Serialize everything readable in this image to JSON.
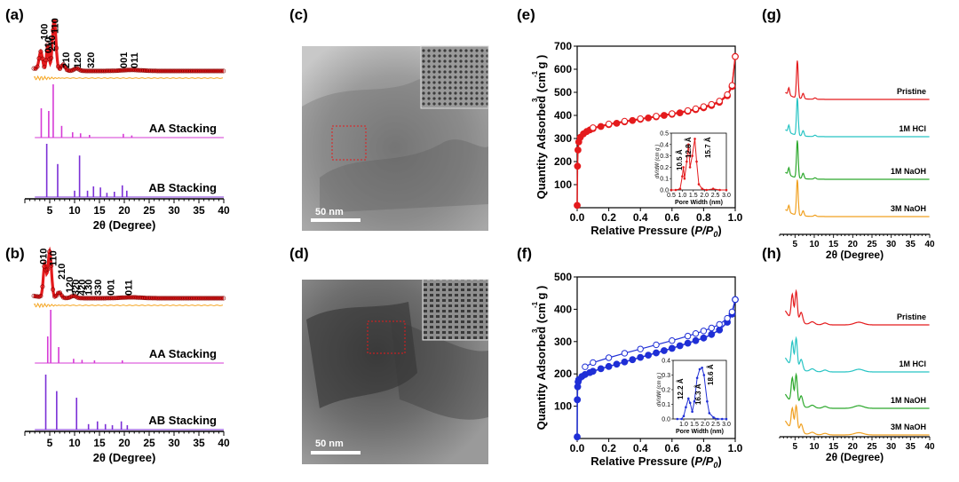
{
  "panels": {
    "a": "(a)",
    "b": "(b)",
    "c": "(c)",
    "d": "(d)",
    "e": "(e)",
    "f": "(f)",
    "g": "(g)",
    "h": "(h)"
  },
  "colors": {
    "experimental": "#e41a1c",
    "fit_marker": "#8b0000",
    "difference": "#f5a623",
    "aa": "#d63ad6",
    "ab": "#7b2fd6",
    "iso_e": "#e41a1c",
    "iso_f": "#1f2fd6",
    "pristine": "#e41a1c",
    "hcl": "#27c4c4",
    "naoh1": "#2ca82c",
    "naoh3": "#f0a020"
  },
  "chart_data": [
    {
      "id": "a",
      "type": "line",
      "xlabel": "2θ (Degree)",
      "xlim": [
        0,
        40
      ],
      "xticks": [
        5,
        10,
        15,
        20,
        25,
        30,
        35,
        40
      ],
      "peak_labels": [
        {
          "text": "100",
          "x": 3.8
        },
        {
          "text": "010",
          "x": 4.6
        },
        {
          "text": "210",
          "x": 5.4
        },
        {
          "text": "110",
          "x": 6.0
        },
        {
          "text": "210",
          "x": 8.2
        },
        {
          "text": "120",
          "x": 10.5
        },
        {
          "text": "320",
          "x": 13.2
        },
        {
          "text": "001",
          "x": 19.8
        },
        {
          "text": "011",
          "x": 22.0
        }
      ],
      "stack_labels": [
        "AA Stacking",
        "AB Stacking"
      ],
      "aa_sticks": [
        {
          "x": 3.3,
          "h": 0.55
        },
        {
          "x": 4.8,
          "h": 0.5
        },
        {
          "x": 5.7,
          "h": 1.0
        },
        {
          "x": 7.4,
          "h": 0.22
        },
        {
          "x": 9.6,
          "h": 0.1
        },
        {
          "x": 11.2,
          "h": 0.08
        },
        {
          "x": 13.0,
          "h": 0.05
        },
        {
          "x": 19.8,
          "h": 0.07
        },
        {
          "x": 21.5,
          "h": 0.04
        }
      ],
      "ab_sticks": [
        {
          "x": 4.4,
          "h": 1.0
        },
        {
          "x": 6.6,
          "h": 0.62
        },
        {
          "x": 10.0,
          "h": 0.12
        },
        {
          "x": 11.0,
          "h": 0.78
        },
        {
          "x": 12.6,
          "h": 0.12
        },
        {
          "x": 13.8,
          "h": 0.2
        },
        {
          "x": 15.2,
          "h": 0.18
        },
        {
          "x": 16.5,
          "h": 0.08
        },
        {
          "x": 18.0,
          "h": 0.1
        },
        {
          "x": 19.6,
          "h": 0.22
        },
        {
          "x": 20.5,
          "h": 0.12
        }
      ]
    },
    {
      "id": "b",
      "type": "line",
      "xlabel": "2θ (Degree)",
      "xlim": [
        0,
        40
      ],
      "xticks": [
        5,
        10,
        15,
        20,
        25,
        30,
        35,
        40
      ],
      "peak_labels": [
        {
          "text": "010",
          "x": 3.7
        },
        {
          "text": "110",
          "x": 5.6
        },
        {
          "text": "210",
          "x": 7.3
        },
        {
          "text": "120",
          "x": 8.9
        },
        {
          "text": "320",
          "x": 10.2
        },
        {
          "text": "420",
          "x": 11.4
        },
        {
          "text": "130",
          "x": 12.8
        },
        {
          "text": "330",
          "x": 14.6
        },
        {
          "text": "001",
          "x": 17.2
        },
        {
          "text": "011",
          "x": 20.8
        }
      ],
      "stack_labels": [
        "AA Stacking",
        "AB Stacking"
      ],
      "aa_sticks": [
        {
          "x": 4.6,
          "h": 0.5
        },
        {
          "x": 5.2,
          "h": 1.0
        },
        {
          "x": 6.8,
          "h": 0.3
        },
        {
          "x": 9.8,
          "h": 0.08
        },
        {
          "x": 11.5,
          "h": 0.06
        },
        {
          "x": 14.0,
          "h": 0.05
        },
        {
          "x": 19.6,
          "h": 0.05
        }
      ],
      "ab_sticks": [
        {
          "x": 4.2,
          "h": 1.0
        },
        {
          "x": 6.4,
          "h": 0.7
        },
        {
          "x": 10.4,
          "h": 0.58
        },
        {
          "x": 12.8,
          "h": 0.1
        },
        {
          "x": 14.6,
          "h": 0.15
        },
        {
          "x": 16.2,
          "h": 0.1
        },
        {
          "x": 17.6,
          "h": 0.08
        },
        {
          "x": 19.4,
          "h": 0.15
        },
        {
          "x": 20.6,
          "h": 0.08
        }
      ]
    },
    {
      "id": "e",
      "type": "scatter",
      "xlabel_pre": "Relative Pressure (",
      "xlabel_var": "P/P",
      "xlabel_sub": "0",
      "xlabel_post": ")",
      "ylabel": "Quantity Adsorbed (cm  g )",
      "ylabel_sup1": "3",
      "ylabel_sup2": "-1",
      "xlim": [
        0,
        1.0
      ],
      "ylim": [
        0,
        700
      ],
      "xticks": [
        0.0,
        0.2,
        0.4,
        0.6,
        0.8,
        1.0
      ],
      "xtick_labels": [
        "0.0",
        "0.2",
        "0.4",
        "0.6",
        "0.8",
        "1.0"
      ],
      "yticks": [
        100,
        200,
        300,
        400,
        500,
        600,
        700
      ],
      "adsorption": [
        [
          0.0,
          10
        ],
        [
          0.002,
          180
        ],
        [
          0.005,
          250
        ],
        [
          0.01,
          285
        ],
        [
          0.02,
          305
        ],
        [
          0.04,
          320
        ],
        [
          0.06,
          330
        ],
        [
          0.08,
          337
        ],
        [
          0.1,
          343
        ],
        [
          0.15,
          352
        ],
        [
          0.2,
          360
        ],
        [
          0.25,
          366
        ],
        [
          0.3,
          372
        ],
        [
          0.35,
          378
        ],
        [
          0.4,
          383
        ],
        [
          0.45,
          389
        ],
        [
          0.5,
          394
        ],
        [
          0.55,
          400
        ],
        [
          0.6,
          405
        ],
        [
          0.65,
          411
        ],
        [
          0.7,
          418
        ],
        [
          0.75,
          425
        ],
        [
          0.8,
          433
        ],
        [
          0.85,
          443
        ],
        [
          0.9,
          457
        ],
        [
          0.95,
          485
        ],
        [
          0.98,
          525
        ],
        [
          1.0,
          655
        ]
      ],
      "desorption": [
        [
          1.0,
          655
        ],
        [
          0.98,
          530
        ],
        [
          0.95,
          490
        ],
        [
          0.9,
          462
        ],
        [
          0.85,
          448
        ],
        [
          0.8,
          438
        ],
        [
          0.75,
          429
        ],
        [
          0.7,
          421
        ],
        [
          0.6,
          408
        ],
        [
          0.5,
          397
        ],
        [
          0.4,
          386
        ],
        [
          0.3,
          375
        ],
        [
          0.2,
          363
        ],
        [
          0.1,
          347
        ]
      ],
      "inset": {
        "xlabel": "Pore Width (nm)",
        "ylabel": "dV/dW (cm  g )",
        "ylabel_sup1": "3",
        "ylabel_sup2": "-1",
        "xlim": [
          0.5,
          3.0
        ],
        "ylim": [
          0,
          0.5
        ],
        "xticks": [
          0.5,
          1.0,
          1.5,
          2.0,
          2.5,
          3.0
        ],
        "xtick_labels": [
          "0.5",
          "1.0",
          "1.5",
          "2.0",
          "2.5",
          "3.0"
        ],
        "yticks": [
          0.0,
          0.1,
          0.2,
          0.3,
          0.4,
          0.5
        ],
        "ytick_labels": [
          "0.0",
          "0.1",
          "0.2",
          "0.3",
          "0.4",
          "0.5"
        ],
        "annotations": [
          "10.5 Å",
          "12.8 Å",
          "15.7 Å"
        ],
        "points": [
          [
            0.5,
            0.0
          ],
          [
            0.7,
            0.0
          ],
          [
            0.9,
            0.01
          ],
          [
            1.0,
            0.12
          ],
          [
            1.05,
            0.2
          ],
          [
            1.1,
            0.1
          ],
          [
            1.2,
            0.25
          ],
          [
            1.28,
            0.4
          ],
          [
            1.35,
            0.2
          ],
          [
            1.45,
            0.3
          ],
          [
            1.57,
            0.45
          ],
          [
            1.65,
            0.25
          ],
          [
            1.75,
            0.05
          ],
          [
            1.9,
            0.01
          ],
          [
            2.1,
            0.0
          ],
          [
            2.4,
            0.01
          ],
          [
            2.7,
            0.0
          ],
          [
            3.0,
            0.0
          ]
        ]
      }
    },
    {
      "id": "f",
      "type": "scatter",
      "xlabel_pre": "Relative Pressure (",
      "xlabel_var": "P/P",
      "xlabel_sub": "0",
      "xlabel_post": ")",
      "ylabel": "Quantity Adsorbed (cm  g )",
      "ylabel_sup1": "3",
      "ylabel_sup2": "-1",
      "xlim": [
        0,
        1.0
      ],
      "ylim": [
        0,
        500
      ],
      "xticks": [
        0.0,
        0.2,
        0.4,
        0.6,
        0.8,
        1.0
      ],
      "xtick_labels": [
        "0.0",
        "0.2",
        "0.4",
        "0.6",
        "0.8",
        "1.0"
      ],
      "yticks": [
        100,
        200,
        300,
        400,
        500
      ],
      "adsorption": [
        [
          0.0,
          5
        ],
        [
          0.001,
          120
        ],
        [
          0.003,
          160
        ],
        [
          0.006,
          175
        ],
        [
          0.01,
          182
        ],
        [
          0.03,
          192
        ],
        [
          0.05,
          198
        ],
        [
          0.08,
          204
        ],
        [
          0.1,
          208
        ],
        [
          0.15,
          216
        ],
        [
          0.2,
          223
        ],
        [
          0.25,
          230
        ],
        [
          0.3,
          237
        ],
        [
          0.35,
          244
        ],
        [
          0.4,
          251
        ],
        [
          0.45,
          258
        ],
        [
          0.5,
          265
        ],
        [
          0.55,
          272
        ],
        [
          0.6,
          279
        ],
        [
          0.65,
          287
        ],
        [
          0.7,
          295
        ],
        [
          0.75,
          303
        ],
        [
          0.8,
          311
        ],
        [
          0.85,
          322
        ],
        [
          0.9,
          336
        ],
        [
          0.95,
          360
        ],
        [
          0.98,
          385
        ],
        [
          1.0,
          430
        ]
      ],
      "desorption": [
        [
          1.0,
          430
        ],
        [
          0.98,
          392
        ],
        [
          0.95,
          372
        ],
        [
          0.9,
          353
        ],
        [
          0.85,
          342
        ],
        [
          0.8,
          333
        ],
        [
          0.75,
          325
        ],
        [
          0.7,
          317
        ],
        [
          0.6,
          303
        ],
        [
          0.5,
          290
        ],
        [
          0.4,
          277
        ],
        [
          0.3,
          264
        ],
        [
          0.2,
          250
        ],
        [
          0.1,
          235
        ],
        [
          0.05,
          222
        ]
      ],
      "inset": {
        "xlabel": "Pore Width (nm)",
        "ylabel": "dV/dW (cm  g )",
        "ylabel_sup1": "3",
        "ylabel_sup2": "-1",
        "xlim": [
          0.5,
          3.0
        ],
        "ylim": [
          0,
          0.4
        ],
        "xticks": [
          1.0,
          1.5,
          2.0,
          2.5,
          3.0
        ],
        "xtick_labels": [
          "1.0",
          "1.5",
          "2.0",
          "2.5",
          "3.0"
        ],
        "yticks": [
          0.0,
          0.1,
          0.2,
          0.3,
          0.4
        ],
        "ytick_labels": [
          "0.0",
          "0.1",
          "0.2",
          "0.3",
          "0.4"
        ],
        "annotations": [
          "12.2 Å",
          "16.3 Å",
          "18.6 Å"
        ],
        "points": [
          [
            0.7,
            0.0
          ],
          [
            0.9,
            0.0
          ],
          [
            1.0,
            0.02
          ],
          [
            1.1,
            0.08
          ],
          [
            1.22,
            0.14
          ],
          [
            1.3,
            0.11
          ],
          [
            1.4,
            0.05
          ],
          [
            1.5,
            0.12
          ],
          [
            1.63,
            0.28
          ],
          [
            1.75,
            0.34
          ],
          [
            1.86,
            0.35
          ],
          [
            1.95,
            0.3
          ],
          [
            2.1,
            0.12
          ],
          [
            2.2,
            0.04
          ],
          [
            2.4,
            0.01
          ],
          [
            2.6,
            0.0
          ],
          [
            2.8,
            0.0
          ],
          [
            3.0,
            0.0
          ]
        ]
      }
    },
    {
      "id": "g",
      "type": "line",
      "xlabel": "2θ (Degree)",
      "xlim": [
        0,
        40
      ],
      "xticks": [
        5,
        10,
        15,
        20,
        25,
        30,
        35,
        40
      ],
      "traces": [
        "Pristine",
        "1M HCl",
        "1M NaOH",
        "3M NaOH"
      ]
    },
    {
      "id": "h",
      "type": "line",
      "xlabel": "2θ (Degree)",
      "xlim": [
        0,
        40
      ],
      "xticks": [
        5,
        10,
        15,
        20,
        25,
        30,
        35,
        40
      ],
      "traces": [
        "Pristine",
        "1M HCl",
        "1M NaOH",
        "3M NaOH"
      ]
    }
  ],
  "images": {
    "c_scale": "50 nm",
    "d_scale": "50 nm"
  }
}
